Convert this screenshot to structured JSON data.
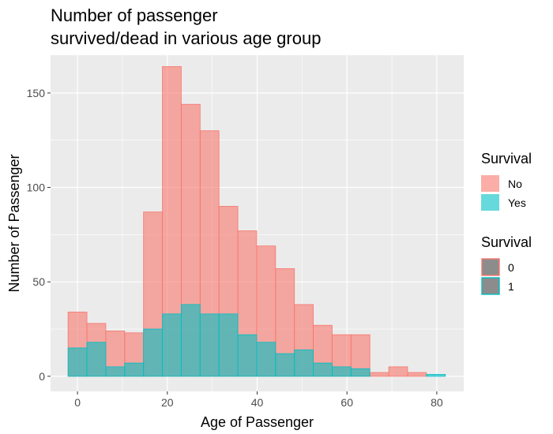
{
  "chart_data": {
    "type": "bar",
    "title": [
      "Number of passenger",
      "survived/dead in various age group"
    ],
    "xlabel": "Age of Passenger",
    "ylabel": "Number of Passenger",
    "xlim": [
      -6,
      86
    ],
    "ylim": [
      -8,
      170
    ],
    "x_ticks": [
      0,
      20,
      40,
      60,
      80
    ],
    "y_ticks": [
      0,
      50,
      100,
      150
    ],
    "bin_width": 4.2,
    "bin_centers": [
      0,
      4.2,
      8.4,
      12.6,
      16.8,
      21.0,
      25.2,
      29.4,
      33.6,
      37.8,
      42.0,
      46.2,
      50.4,
      54.6,
      58.8,
      63.0,
      67.2,
      71.4,
      75.6,
      79.8
    ],
    "series": [
      {
        "name": "No",
        "values": [
          34,
          28,
          24,
          23,
          87,
          164,
          144,
          130,
          90,
          77,
          69,
          57,
          38,
          27,
          22,
          22,
          2,
          5,
          2,
          0
        ]
      },
      {
        "name": "Yes",
        "values": [
          15,
          18,
          5,
          7,
          25,
          33,
          38,
          33,
          33,
          22,
          18,
          12,
          14,
          7,
          5,
          4,
          0,
          0,
          0,
          1
        ]
      }
    ],
    "grid": true,
    "legend_position": "right",
    "legends": [
      {
        "title": "Survival",
        "items": [
          {
            "label": "No",
            "fill": "#F8766D"
          },
          {
            "label": "Yes",
            "fill": "#00BFC4"
          }
        ]
      },
      {
        "title": "Survival",
        "items": [
          {
            "label": "0",
            "stroke": "#F8766D"
          },
          {
            "label": "1",
            "stroke": "#00BFC4"
          }
        ]
      }
    ],
    "colors": {
      "No": "#F8766D",
      "Yes": "#00BFC4",
      "panel": "#EBEBEB",
      "grid": "#FFFFFF"
    }
  }
}
